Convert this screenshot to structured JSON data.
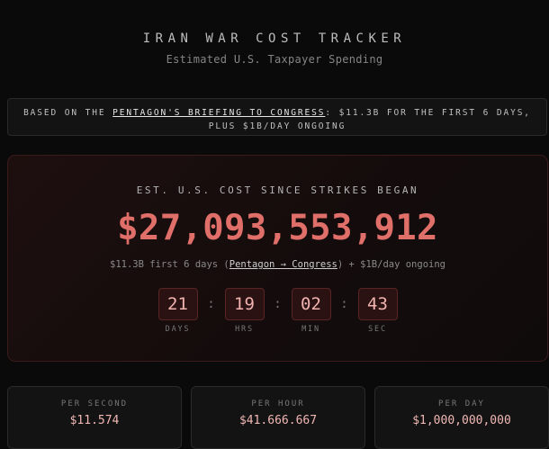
{
  "header": {
    "title": "IRAN WAR COST TRACKER",
    "subtitle": "Estimated U.S. Taxpayer Spending"
  },
  "banner": {
    "prefix": "BASED ON THE ",
    "link": "PENTAGON'S BRIEFING TO CONGRESS",
    "suffix": ": $11.3B FOR THE FIRST 6 DAYS, PLUS $1B/DAY ONGOING"
  },
  "counter": {
    "label": "EST. U.S. COST SINCE STRIKES BEGAN",
    "total": "$27,093,553,912",
    "note_prefix": "$11.3B first 6 days (",
    "note_link": "Pentagon → Congress",
    "note_suffix": ") + $1B/day ongoing",
    "timer": [
      {
        "value": "21",
        "label": "DAYS"
      },
      {
        "value": "19",
        "label": "HRS"
      },
      {
        "value": "02",
        "label": "MIN"
      },
      {
        "value": "43",
        "label": "SEC"
      }
    ],
    "separator": ":"
  },
  "stats": [
    {
      "label": "PER SECOND",
      "value": "$11.574"
    },
    {
      "label": "PER HOUR",
      "value": "$41.666.667"
    },
    {
      "label": "PER DAY",
      "value": "$1,000,000,000"
    }
  ],
  "colors": {
    "accent": "#e06f6a",
    "background": "#0b0a0a"
  }
}
